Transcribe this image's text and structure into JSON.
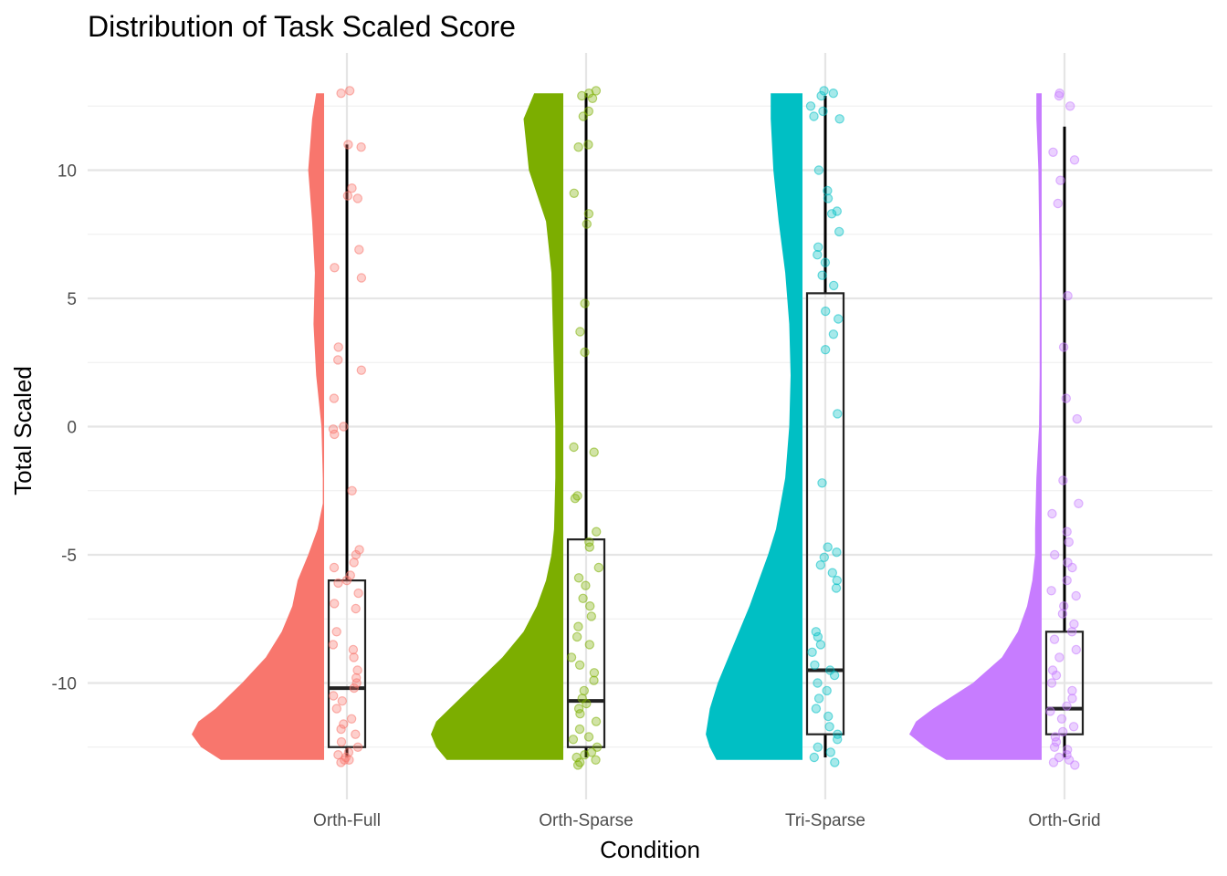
{
  "chart_data": {
    "type": "raincloud",
    "title": "Distribution of Task Scaled Score",
    "xlabel": "Condition",
    "ylabel": "Total Scaled",
    "categories": [
      "Orth-Full",
      "Orth-Sparse",
      "Tri-Sparse",
      "Orth-Grid"
    ],
    "colors": [
      "#F8766D",
      "#7CAE00",
      "#00BFC4",
      "#C77CFF"
    ],
    "ylim": [
      -12.8,
      13.2
    ],
    "yticks": [
      -10,
      -5,
      0,
      5,
      10
    ],
    "ytick_labels": [
      "-10",
      "-5",
      "0",
      "5",
      "10"
    ],
    "grid": true,
    "legend": "none",
    "series": [
      {
        "box": {
          "q1": -12.5,
          "median": -10.2,
          "q3": -6.0,
          "whisker_low": -12.9,
          "whisker_high": 11.0
        },
        "density": [
          [
            -13,
            0.78
          ],
          [
            -12.5,
            0.93
          ],
          [
            -12,
            1.0
          ],
          [
            -11.5,
            0.95
          ],
          [
            -11,
            0.82
          ],
          [
            -10,
            0.62
          ],
          [
            -9,
            0.44
          ],
          [
            -8,
            0.32
          ],
          [
            -7,
            0.24
          ],
          [
            -6,
            0.2
          ],
          [
            -5,
            0.12
          ],
          [
            -4,
            0.05
          ],
          [
            -3,
            0.01
          ],
          [
            -2,
            0.01
          ],
          [
            0,
            0.02
          ],
          [
            2,
            0.06
          ],
          [
            4,
            0.08
          ],
          [
            6,
            0.07
          ],
          [
            8,
            0.09
          ],
          [
            10,
            0.12
          ],
          [
            12,
            0.09
          ],
          [
            13,
            0.06
          ]
        ],
        "points": [
          13.1,
          13.0,
          11.0,
          10.9,
          9.3,
          9.0,
          8.9,
          6.9,
          6.2,
          5.8,
          3.1,
          2.6,
          2.2,
          1.1,
          0.0,
          -0.1,
          -0.3,
          -2.5,
          -4.8,
          -5.0,
          -5.3,
          -5.5,
          -5.8,
          -6.0,
          -6.1,
          -6.5,
          -6.9,
          -7.1,
          -8.0,
          -8.5,
          -8.7,
          -9.0,
          -9.5,
          -9.8,
          -10.0,
          -10.2,
          -10.5,
          -10.7,
          -11.0,
          -11.4,
          -11.6,
          -11.8,
          -12.0,
          -12.3,
          -12.5,
          -12.7,
          -12.8,
          -12.9,
          -13.0,
          -13.0,
          -13.1
        ]
      },
      {
        "box": {
          "q1": -12.5,
          "median": -10.7,
          "q3": -4.4,
          "whisker_low": -12.9,
          "whisker_high": 13.0
        },
        "density": [
          [
            -13,
            0.88
          ],
          [
            -12.5,
            0.96
          ],
          [
            -12,
            1.0
          ],
          [
            -11.5,
            0.96
          ],
          [
            -11,
            0.86
          ],
          [
            -10,
            0.66
          ],
          [
            -9,
            0.46
          ],
          [
            -8,
            0.3
          ],
          [
            -7,
            0.2
          ],
          [
            -6,
            0.13
          ],
          [
            -5,
            0.09
          ],
          [
            -4,
            0.07
          ],
          [
            -2,
            0.06
          ],
          [
            0,
            0.06
          ],
          [
            2,
            0.07
          ],
          [
            4,
            0.08
          ],
          [
            6,
            0.09
          ],
          [
            8,
            0.13
          ],
          [
            10,
            0.26
          ],
          [
            12,
            0.3
          ],
          [
            13,
            0.22
          ]
        ],
        "points": [
          13.1,
          13.0,
          12.9,
          12.8,
          12.3,
          12.1,
          11.0,
          10.9,
          9.1,
          8.3,
          7.9,
          4.8,
          3.7,
          2.9,
          -0.8,
          -1.0,
          -2.7,
          -2.8,
          -4.1,
          -4.5,
          -4.7,
          -5.5,
          -5.9,
          -6.2,
          -6.7,
          -7.0,
          -7.4,
          -7.8,
          -8.2,
          -8.5,
          -9.0,
          -9.3,
          -9.6,
          -9.9,
          -10.3,
          -10.6,
          -10.8,
          -11.0,
          -11.2,
          -11.5,
          -11.8,
          -12.1,
          -12.2,
          -12.5,
          -12.7,
          -12.8,
          -12.9,
          -13.0,
          -13.1,
          -13.2
        ]
      },
      {
        "box": {
          "q1": -12.0,
          "median": -9.5,
          "q3": 5.2,
          "whisker_low": -12.9,
          "whisker_high": 12.9
        },
        "density": [
          [
            -13,
            0.65
          ],
          [
            -12.5,
            0.7
          ],
          [
            -12,
            0.73
          ],
          [
            -11,
            0.7
          ],
          [
            -10,
            0.64
          ],
          [
            -9,
            0.56
          ],
          [
            -8,
            0.48
          ],
          [
            -7,
            0.4
          ],
          [
            -6,
            0.33
          ],
          [
            -5,
            0.26
          ],
          [
            -4,
            0.2
          ],
          [
            -2,
            0.13
          ],
          [
            0,
            0.1
          ],
          [
            2,
            0.09
          ],
          [
            4,
            0.1
          ],
          [
            6,
            0.13
          ],
          [
            8,
            0.18
          ],
          [
            10,
            0.22
          ],
          [
            12,
            0.24
          ],
          [
            13,
            0.24
          ]
        ],
        "points": [
          13.1,
          13.0,
          12.9,
          12.5,
          12.3,
          12.1,
          12.0,
          10.0,
          9.2,
          8.9,
          8.4,
          8.3,
          7.6,
          7.0,
          6.7,
          6.4,
          5.9,
          5.5,
          4.5,
          4.2,
          3.6,
          3.0,
          0.5,
          -2.2,
          -4.7,
          -4.9,
          -5.1,
          -5.4,
          -5.7,
          -6.0,
          -6.3,
          -8.0,
          -8.2,
          -8.5,
          -8.8,
          -9.3,
          -9.5,
          -9.7,
          -10.0,
          -10.3,
          -10.6,
          -11.0,
          -11.3,
          -11.7,
          -12.0,
          -12.2,
          -12.5,
          -12.7,
          -12.9,
          -13.1
        ]
      },
      {
        "box": {
          "q1": -12.0,
          "median": -11.0,
          "q3": -8.0,
          "whisker_low": -12.9,
          "whisker_high": 11.7
        },
        "density": [
          [
            -13,
            0.72
          ],
          [
            -12.5,
            0.88
          ],
          [
            -12,
            1.0
          ],
          [
            -11.5,
            0.95
          ],
          [
            -11,
            0.82
          ],
          [
            -10,
            0.52
          ],
          [
            -9,
            0.3
          ],
          [
            -8,
            0.18
          ],
          [
            -7,
            0.11
          ],
          [
            -6,
            0.07
          ],
          [
            -5,
            0.05
          ],
          [
            -4,
            0.05
          ],
          [
            -2,
            0.04
          ],
          [
            0,
            0.02
          ],
          [
            2,
            0.015
          ],
          [
            4,
            0.015
          ],
          [
            6,
            0.015
          ],
          [
            8,
            0.02
          ],
          [
            10,
            0.025
          ],
          [
            12,
            0.04
          ],
          [
            13,
            0.04
          ]
        ],
        "points": [
          13.0,
          12.9,
          12.5,
          10.7,
          10.4,
          9.6,
          8.7,
          5.1,
          3.1,
          1.1,
          0.3,
          -2.1,
          -3.0,
          -3.4,
          -4.1,
          -4.5,
          -5.0,
          -5.3,
          -5.5,
          -6.0,
          -6.4,
          -6.6,
          -7.0,
          -7.3,
          -7.7,
          -8.0,
          -8.3,
          -8.7,
          -9.0,
          -9.5,
          -9.7,
          -10.0,
          -10.3,
          -10.6,
          -10.9,
          -11.1,
          -11.4,
          -11.7,
          -11.9,
          -12.1,
          -12.3,
          -12.5,
          -12.6,
          -12.8,
          -12.9,
          -13.0,
          -13.1,
          -13.2
        ]
      }
    ]
  }
}
